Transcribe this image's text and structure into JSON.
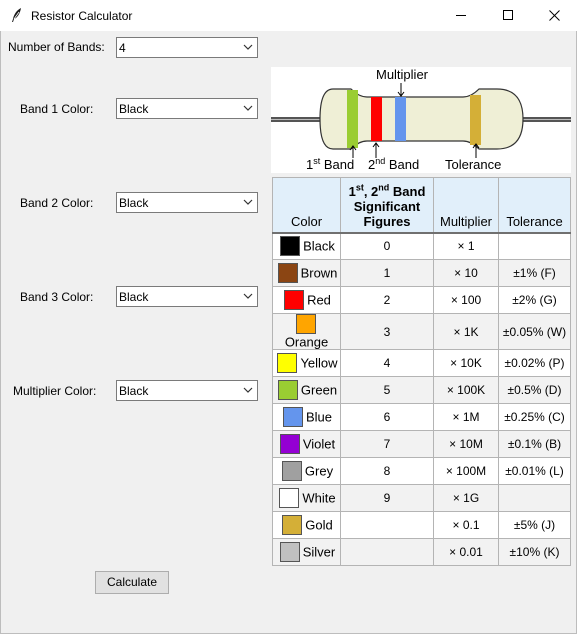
{
  "window": {
    "title": "Resistor Calculator"
  },
  "form": {
    "number_of_bands": {
      "label": "Number of Bands:",
      "value": "4"
    },
    "band1": {
      "label": "Band 1 Color:",
      "value": "Black"
    },
    "band2": {
      "label": "Band 2 Color:",
      "value": "Black"
    },
    "band3": {
      "label": "Band 3 Color:",
      "value": "Black"
    },
    "multiplier": {
      "label": "Multiplier Color:",
      "value": "Black"
    },
    "calculate_label": "Calculate"
  },
  "diagram": {
    "multiplier_label": "Multiplier",
    "first_band": {
      "num": "1",
      "sup": "st",
      "text": " Band"
    },
    "second_band": {
      "num": "2",
      "sup": "nd",
      "text": " Band"
    },
    "tolerance_label": "Tolerance",
    "band_colors": [
      "#9acd32",
      "#ff0000",
      "#6495ed",
      "#d4af37"
    ]
  },
  "table": {
    "headers": {
      "color": "Color",
      "sig_line1_a": "1",
      "sig_line1_a_sup": "st",
      "sig_line1_b": ", 2",
      "sig_line1_b_sup": "nd",
      "sig_line1_c": " Band",
      "sig_line2": "Significant",
      "sig_line3": "Figures",
      "multiplier": "Multiplier",
      "tolerance": "Tolerance"
    },
    "rows": [
      {
        "name": "Black",
        "swatch": "#000000",
        "figure": "0",
        "multiplier": "× 1",
        "tolerance": ""
      },
      {
        "name": "Brown",
        "swatch": "#8b4513",
        "figure": "1",
        "multiplier": "× 10",
        "tolerance": "±1% (F)"
      },
      {
        "name": "Red",
        "swatch": "#ff0000",
        "figure": "2",
        "multiplier": "× 100",
        "tolerance": "±2% (G)"
      },
      {
        "name": "Orange",
        "swatch": "#ffa500",
        "figure": "3",
        "multiplier": "× 1K",
        "tolerance": "±0.05% (W)"
      },
      {
        "name": "Yellow",
        "swatch": "#ffff00",
        "figure": "4",
        "multiplier": "× 10K",
        "tolerance": "±0.02% (P)"
      },
      {
        "name": "Green",
        "swatch": "#9acd32",
        "figure": "5",
        "multiplier": "× 100K",
        "tolerance": "±0.5% (D)"
      },
      {
        "name": "Blue",
        "swatch": "#6495ed",
        "figure": "6",
        "multiplier": "× 1M",
        "tolerance": "±0.25% (C)"
      },
      {
        "name": "Violet",
        "swatch": "#9400d3",
        "figure": "7",
        "multiplier": "× 10M",
        "tolerance": "±0.1% (B)"
      },
      {
        "name": "Grey",
        "swatch": "#a0a0a0",
        "figure": "8",
        "multiplier": "× 100M",
        "tolerance": "±0.01% (L)"
      },
      {
        "name": "White",
        "swatch": "#ffffff",
        "figure": "9",
        "multiplier": "× 1G",
        "tolerance": ""
      },
      {
        "name": "Gold",
        "swatch": "#d4af37",
        "figure": "",
        "multiplier": "× 0.1",
        "tolerance": "±5% (J)"
      },
      {
        "name": "Silver",
        "swatch": "#c0c0c0",
        "figure": "",
        "multiplier": "× 0.01",
        "tolerance": "±10% (K)"
      }
    ]
  }
}
